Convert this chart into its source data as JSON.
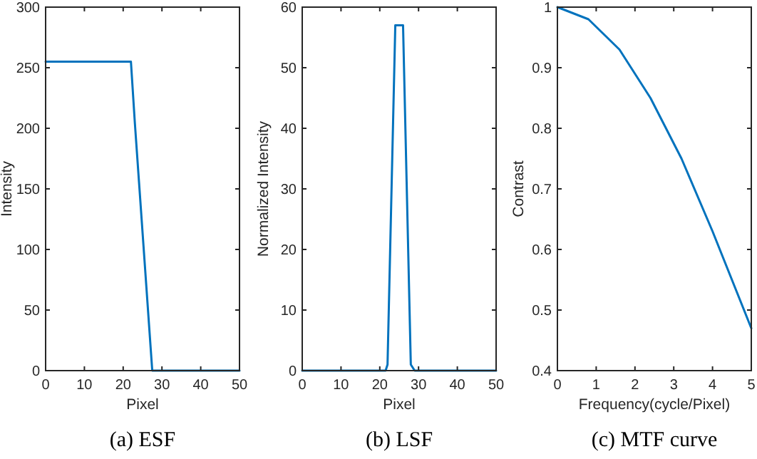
{
  "chart_data": [
    {
      "type": "line",
      "xlabel": "Pixel",
      "ylabel": "Intensity",
      "xlim": [
        0,
        50
      ],
      "xticks": [
        0,
        10,
        20,
        30,
        40,
        50
      ],
      "ylim": [
        0,
        300
      ],
      "yticks": [
        0,
        50,
        100,
        150,
        200,
        250,
        300
      ],
      "grid": false,
      "annotations": [
        "(a) ESF"
      ],
      "series": [
        {
          "color": "#0072bd",
          "x": [
            0,
            22,
            23,
            27.5,
            50
          ],
          "values": [
            255,
            255,
            205,
            0,
            0
          ]
        }
      ]
    },
    {
      "type": "line",
      "xlabel": "Pixel",
      "ylabel": "Normalized Intensity",
      "xlim": [
        0,
        50
      ],
      "xticks": [
        0,
        10,
        20,
        30,
        40,
        50
      ],
      "ylim": [
        0,
        60
      ],
      "yticks": [
        0,
        10,
        20,
        30,
        40,
        50,
        60
      ],
      "grid": false,
      "annotations": [
        "(b) LSF"
      ],
      "series": [
        {
          "color": "#0072bd",
          "x": [
            0,
            21.5,
            22,
            24,
            26,
            28,
            29,
            50
          ],
          "values": [
            0,
            0,
            1,
            57,
            57,
            1,
            0,
            0
          ]
        }
      ]
    },
    {
      "type": "line",
      "xlabel": "Frequency(cycle/Pixel)",
      "ylabel": "Contrast",
      "xlim": [
        0,
        5
      ],
      "xticks": [
        0,
        1,
        2,
        3,
        4,
        5
      ],
      "ylim": [
        0.4,
        1
      ],
      "yticks": [
        0.4,
        0.5,
        0.6,
        0.7,
        0.8,
        0.9,
        1
      ],
      "grid": false,
      "annotations": [
        "(c) MTF curve"
      ],
      "series": [
        {
          "color": "#0072bd",
          "x": [
            0,
            0.8,
            1.6,
            2.4,
            3.2,
            4,
            5
          ],
          "values": [
            1,
            0.98,
            0.93,
            0.85,
            0.75,
            0.63,
            0.47
          ]
        }
      ]
    }
  ]
}
